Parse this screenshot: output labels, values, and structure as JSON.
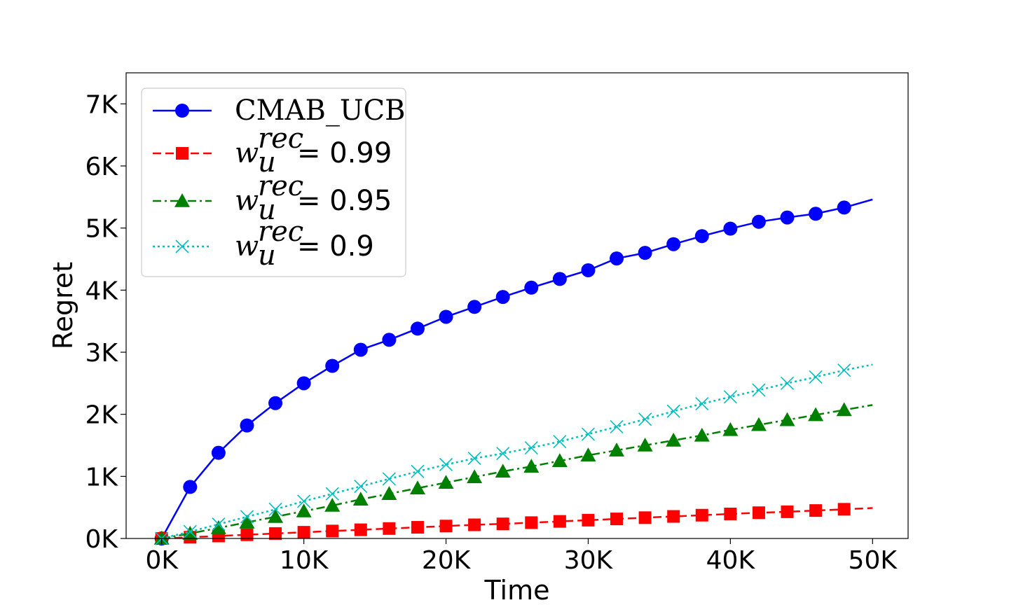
{
  "chart_data": {
    "type": "line",
    "title": "",
    "xlabel": "Time",
    "ylabel": "Regret",
    "xlim": [
      -2500,
      52500
    ],
    "ylim": [
      0,
      7500
    ],
    "xticks": [
      0,
      10000,
      20000,
      30000,
      40000,
      50000
    ],
    "xtick_labels": [
      "0K",
      "10K",
      "20K",
      "30K",
      "40K",
      "50K"
    ],
    "yticks": [
      0,
      1000,
      2000,
      3000,
      4000,
      5000,
      6000,
      7000
    ],
    "ytick_labels": [
      "0K",
      "1K",
      "2K",
      "3K",
      "4K",
      "5K",
      "6K",
      "7K"
    ],
    "grid": false,
    "legend_position": "top-left",
    "series": [
      {
        "name": "CMAB_UCB",
        "legend_label": "CMAB_UCB",
        "color": "#0000ff",
        "marker": "circle",
        "line_style": "solid",
        "x": [
          0,
          2000,
          4000,
          6000,
          8000,
          10000,
          12000,
          14000,
          16000,
          18000,
          20000,
          22000,
          24000,
          26000,
          28000,
          30000,
          32000,
          34000,
          36000,
          38000,
          40000,
          42000,
          44000,
          46000,
          48000,
          50000
        ],
        "values": [
          0,
          830,
          1380,
          1820,
          2180,
          2500,
          2780,
          3040,
          3200,
          3380,
          3570,
          3730,
          3890,
          4040,
          4180,
          4320,
          4510,
          4600,
          4740,
          4870,
          4990,
          5100,
          5170,
          5230,
          5330,
          5460
        ],
        "markers_on_last": false
      },
      {
        "name": "w_u^rec = 0.99",
        "legend_var": "w",
        "legend_sub": "u",
        "legend_sup": "rec",
        "legend_value": "= 0.99",
        "color": "#ff0000",
        "marker": "square",
        "line_style": "dashed",
        "x": [
          0,
          2000,
          4000,
          6000,
          8000,
          10000,
          12000,
          14000,
          16000,
          18000,
          20000,
          22000,
          24000,
          26000,
          28000,
          30000,
          32000,
          34000,
          36000,
          38000,
          40000,
          42000,
          44000,
          46000,
          48000,
          50000
        ],
        "values": [
          0,
          20,
          40,
          60,
          80,
          100,
          120,
          140,
          160,
          180,
          200,
          220,
          235,
          255,
          275,
          295,
          315,
          335,
          355,
          375,
          395,
          415,
          430,
          450,
          470,
          490
        ],
        "markers_on_last": false
      },
      {
        "name": "w_u^rec = 0.95",
        "legend_var": "w",
        "legend_sub": "u",
        "legend_sup": "rec",
        "legend_value": "= 0.95",
        "color": "#008000",
        "marker": "triangle",
        "line_style": "dashdot",
        "x": [
          0,
          2000,
          4000,
          6000,
          8000,
          10000,
          12000,
          14000,
          16000,
          18000,
          20000,
          22000,
          24000,
          26000,
          28000,
          30000,
          32000,
          34000,
          36000,
          38000,
          40000,
          42000,
          44000,
          46000,
          48000,
          50000
        ],
        "values": [
          0,
          80,
          170,
          260,
          350,
          440,
          530,
          630,
          720,
          810,
          900,
          990,
          1080,
          1160,
          1250,
          1340,
          1420,
          1500,
          1580,
          1660,
          1750,
          1830,
          1910,
          1990,
          2070,
          2150
        ],
        "markers_on_last": false
      },
      {
        "name": "w_u^rec = 0.9",
        "legend_var": "w",
        "legend_sub": "u",
        "legend_sup": "rec",
        "legend_value": "= 0.9",
        "color": "#00bfbf",
        "marker": "x",
        "line_style": "dotted",
        "x": [
          0,
          2000,
          4000,
          6000,
          8000,
          10000,
          12000,
          14000,
          16000,
          18000,
          20000,
          22000,
          24000,
          26000,
          28000,
          30000,
          32000,
          34000,
          36000,
          38000,
          40000,
          42000,
          44000,
          46000,
          48000,
          50000
        ],
        "values": [
          0,
          110,
          230,
          350,
          470,
          600,
          720,
          840,
          960,
          1080,
          1190,
          1290,
          1370,
          1460,
          1560,
          1680,
          1800,
          1920,
          2050,
          2170,
          2280,
          2390,
          2500,
          2600,
          2710,
          2800
        ],
        "markers_on_last": false
      }
    ]
  }
}
